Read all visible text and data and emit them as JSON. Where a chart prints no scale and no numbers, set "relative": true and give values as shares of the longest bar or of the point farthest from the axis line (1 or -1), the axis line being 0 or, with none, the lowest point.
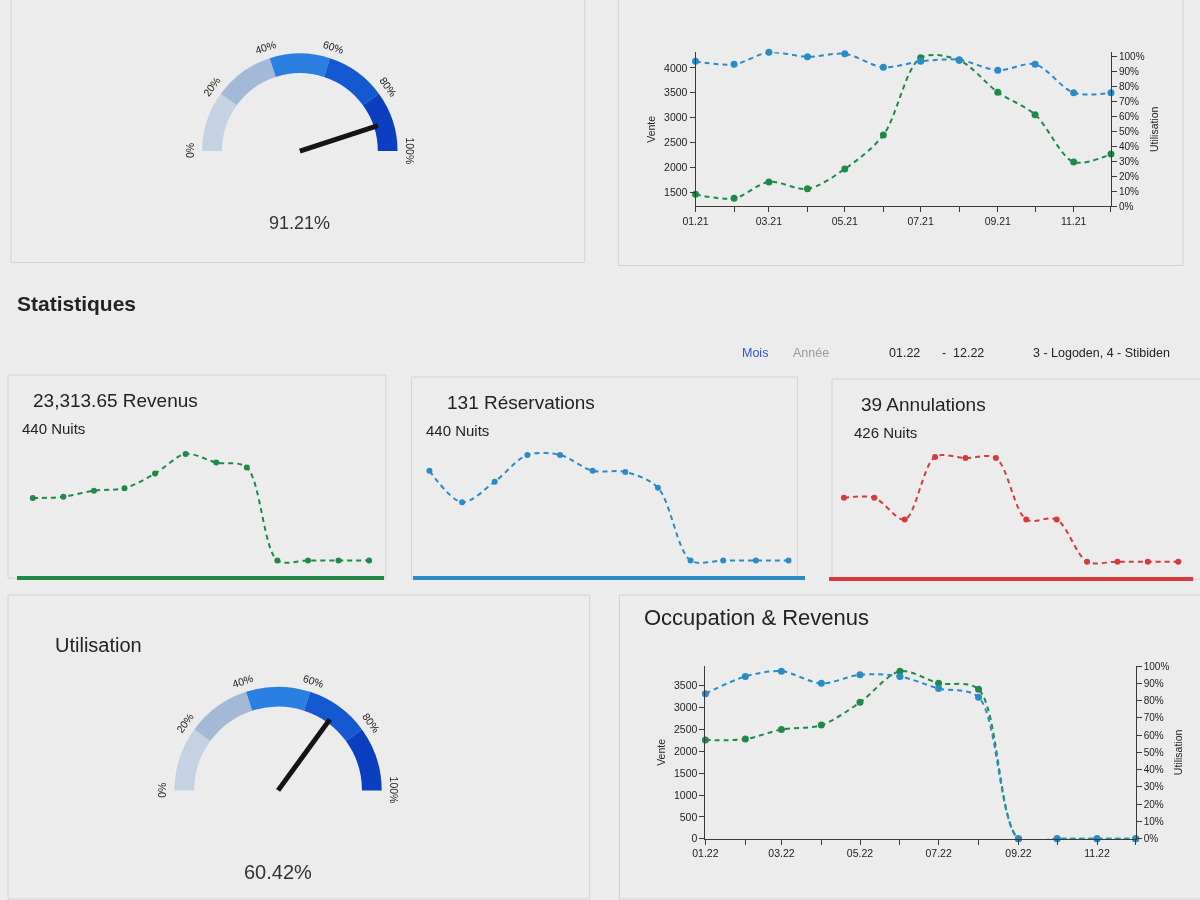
{
  "chart_data": [
    {
      "type": "donut",
      "categories": [
        "0%",
        "20%",
        "40%",
        "60%",
        "80%"
      ],
      "values": [
        20,
        20,
        20,
        20,
        20
      ],
      "colors": [
        "#c4d2e4",
        "#a3bad6",
        "#2a7fe0",
        "#1459cf",
        "#0b3fbf"
      ],
      "needle": "80%",
      "annotations": [
        "100%",
        "91.21%"
      ]
    },
    {
      "type": "line",
      "x": [
        "2021-01",
        "2021-02",
        "2021-03",
        "2021-04",
        "2021-05",
        "2021-06",
        "2021-07",
        "2021-08",
        "2021-09",
        "2021-10",
        "2021-11",
        "2021-12"
      ],
      "xlim": [
        "2021-01",
        "2021-12"
      ],
      "xticks": [
        {
          "value": "2021-01",
          "label": "01.21"
        },
        {
          "value": "2021-02",
          "label": null
        },
        {
          "value": "2021-03",
          "label": "03.21"
        },
        {
          "value": "2021-04",
          "label": null
        },
        {
          "value": "2021-05",
          "label": "05.21"
        },
        {
          "value": "2021-06",
          "label": null
        },
        {
          "value": "2021-07",
          "label": "07.21"
        },
        {
          "value": "2021-08",
          "label": null
        },
        {
          "value": "2021-09",
          "label": "09.21"
        },
        {
          "value": "2021-10",
          "label": null
        },
        {
          "value": "2021-11",
          "label": "11.21"
        },
        {
          "value": "2021-12",
          "label": null
        }
      ],
      "ylabel": "Vente",
      "y2label": "Utilisation",
      "ylim": [
        1220,
        4310
      ],
      "yticks": [
        1500,
        2000,
        2500,
        3000,
        3500,
        4000
      ],
      "y2lim": [
        0,
        103
      ],
      "y2ticks": [
        {
          "value": 0,
          "label": "0%"
        },
        {
          "value": 10,
          "label": "10%"
        },
        {
          "value": 20,
          "label": "20%"
        },
        {
          "value": 30,
          "label": "30%"
        },
        {
          "value": 40,
          "label": "40%"
        },
        {
          "value": 50,
          "label": "50%"
        },
        {
          "value": 60,
          "label": "60%"
        },
        {
          "value": 70,
          "label": "70%"
        },
        {
          "value": 80,
          "label": "80%"
        },
        {
          "value": 90,
          "label": "90%"
        },
        {
          "value": 100,
          "label": "100%"
        }
      ],
      "marker": "circle",
      "line_style": "dashed",
      "series": [
        {
          "color": "#1f8a48",
          "values": [
            1460,
            1380,
            1710,
            1570,
            1970,
            2650,
            4200,
            4150,
            3510,
            3060,
            2110,
            2270
          ]
        },
        {
          "color": "#2b8bc6",
          "axis": "y2",
          "values": [
            97,
            95,
            103,
            100,
            102,
            93,
            97,
            98,
            91,
            95,
            76,
            76
          ]
        }
      ]
    },
    {
      "type": "other",
      "title": "Statistiques",
      "annotations": [
        "Mois",
        "Année",
        "01.22",
        "-",
        "12.22",
        "3 - Logoden, 4 - Stibiden"
      ]
    },
    {
      "type": "line",
      "title": "23,313.65 Revenus",
      "subtitle": "440 Nuits",
      "categories": [
        null,
        null,
        null,
        null,
        null,
        null,
        null,
        null,
        null,
        null,
        null,
        null
      ],
      "relative": true,
      "color": "#1f8a48",
      "marker": "circle",
      "line_style": "dashed",
      "values": [
        0.64,
        0.65,
        0.7,
        0.72,
        0.84,
        1,
        0.93,
        0.89,
        0.13,
        0.13,
        0.13,
        0.13
      ]
    },
    {
      "type": "line",
      "title": "131 Réservations",
      "subtitle": "440 Nuits",
      "categories": [
        null,
        null,
        null,
        null,
        null,
        null,
        null,
        null,
        null,
        null,
        null,
        null
      ],
      "relative": true,
      "color": "#2b8bc6",
      "marker": "circle",
      "line_style": "dashed",
      "values": [
        0.87,
        0.61,
        0.78,
        1,
        1,
        0.87,
        0.86,
        0.73,
        0.13,
        0.13,
        0.13,
        0.13
      ]
    },
    {
      "type": "line",
      "title": "39 Annulations",
      "subtitle": "426 Nuits",
      "categories": [
        null,
        null,
        null,
        null,
        null,
        null,
        null,
        null,
        null,
        null,
        null,
        null
      ],
      "relative": true,
      "color": "#d63b3b",
      "marker": "circle",
      "line_style": "dashed",
      "values": [
        0.66,
        0.66,
        0.48,
        1,
        0.99,
        0.99,
        0.48,
        0.48,
        0.13,
        0.13,
        0.13,
        0.13
      ]
    },
    {
      "type": "donut",
      "title": "Utilisation",
      "categories": [
        "0%",
        "20%",
        "40%",
        "60%",
        "80%"
      ],
      "values": [
        20,
        20,
        20,
        20,
        20
      ],
      "colors": [
        "#c4d2e4",
        "#a3bad6",
        "#2a7fe0",
        "#1459cf",
        "#0b3fbf"
      ],
      "needle": "60%",
      "annotations": [
        "100%",
        "60.42%"
      ]
    },
    {
      "type": "line",
      "title": "Occupation & Revenus",
      "x": [
        "2022-01",
        "2022-02",
        "2022-03",
        "2022-04",
        "2022-05",
        "2022-06",
        "2022-07",
        "2022-08",
        "2022-09",
        "2022-10",
        "2022-11",
        "2022-12"
      ],
      "xlim": [
        "2022-01",
        "2022-12"
      ],
      "xticks": [
        {
          "value": "2022-01",
          "label": "01.22"
        },
        {
          "value": "2022-02",
          "label": null
        },
        {
          "value": "2022-03",
          "label": "03.22"
        },
        {
          "value": "2022-04",
          "label": null
        },
        {
          "value": "2022-05",
          "label": "05.22"
        },
        {
          "value": "2022-06",
          "label": null
        },
        {
          "value": "2022-07",
          "label": "07.22"
        },
        {
          "value": "2022-08",
          "label": null
        },
        {
          "value": "2022-09",
          "label": "09.22"
        },
        {
          "value": "2022-10",
          "label": null
        },
        {
          "value": "2022-11",
          "label": "11.22"
        },
        {
          "value": "2022-12",
          "label": null
        }
      ],
      "ylabel": "Vente",
      "y2label": "Utilisation",
      "ylim": [
        0,
        3950
      ],
      "yticks": [
        0,
        500,
        1000,
        1500,
        2000,
        2500,
        3000,
        3500
      ],
      "y2lim": [
        0,
        100
      ],
      "y2ticks": [
        {
          "value": 0,
          "label": "0%"
        },
        {
          "value": 10,
          "label": "10%"
        },
        {
          "value": 20,
          "label": "20%"
        },
        {
          "value": 30,
          "label": "30%"
        },
        {
          "value": 40,
          "label": "40%"
        },
        {
          "value": 50,
          "label": "50%"
        },
        {
          "value": 60,
          "label": "60%"
        },
        {
          "value": 70,
          "label": "70%"
        },
        {
          "value": 80,
          "label": "80%"
        },
        {
          "value": 90,
          "label": "90%"
        },
        {
          "value": 100,
          "label": "100%"
        }
      ],
      "marker": "circle",
      "line_style": "dashed",
      "series": [
        {
          "color": "#1f8a48",
          "values": [
            2260,
            2280,
            2500,
            2600,
            3120,
            3830,
            3560,
            3420,
            0,
            0,
            0,
            0
          ]
        },
        {
          "color": "#2b8bc6",
          "axis": "y2",
          "values": [
            84,
            94,
            97,
            90,
            95,
            94,
            87,
            82,
            0,
            0,
            0,
            0
          ]
        }
      ]
    }
  ]
}
